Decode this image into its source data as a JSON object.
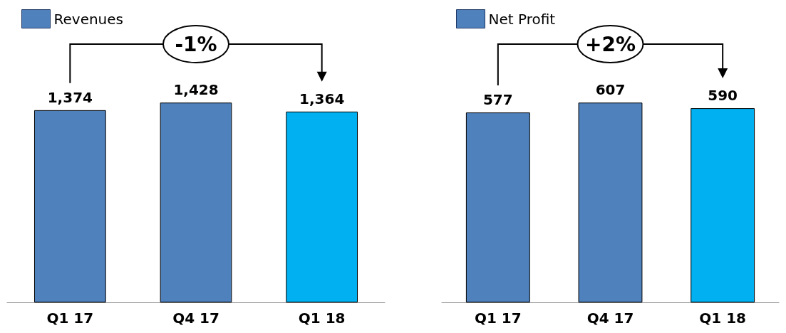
{
  "chart_data": [
    {
      "type": "bar",
      "categories": [
        "Q1 17",
        "Q4 17",
        "Q1 18"
      ],
      "series": [
        {
          "name": "Revenues",
          "color": "#4f81bd",
          "colors": [
            "#4f81bd",
            "#4f81bd",
            "#00b0f0"
          ],
          "values": [
            1374,
            1428,
            1364
          ],
          "value_labels": [
            "1,374",
            "1,428",
            "1,364"
          ]
        }
      ],
      "legend": "top left",
      "annotations": [
        "-1%"
      ]
    },
    {
      "type": "bar",
      "categories": [
        "Q1 17",
        "Q4 17",
        "Q1 18"
      ],
      "series": [
        {
          "name": "Net Profit",
          "color": "#4f81bd",
          "colors": [
            "#4f81bd",
            "#4f81bd",
            "#00b0f0"
          ],
          "values": [
            577,
            607,
            590
          ]
        }
      ],
      "data_labels": true,
      "legend": "top left",
      "annotations": [
        "+2%"
      ]
    }
  ]
}
